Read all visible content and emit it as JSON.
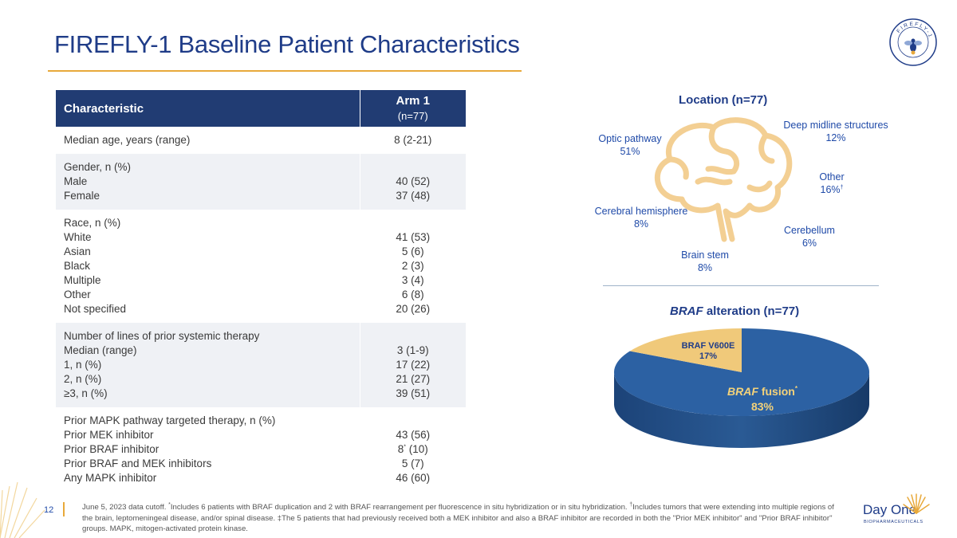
{
  "title": "FIREFLY-1 Baseline Patient Characteristics",
  "logo_text": "FIREFLY-1",
  "table": {
    "header_characteristic": "Characteristic",
    "header_arm": "Arm 1",
    "header_arm_n": "(n=77)",
    "rows": [
      {
        "labels": [
          "Median age, years (range)"
        ],
        "values": [
          "8 (2-21)"
        ]
      },
      {
        "labels": [
          "Gender, n (%)",
          "Male",
          "Female"
        ],
        "values": [
          "",
          "40 (52)",
          "37 (48)"
        ]
      },
      {
        "labels": [
          "Race, n (%)",
          "White",
          "Asian",
          "Black",
          "Multiple",
          "Other",
          "Not specified"
        ],
        "values": [
          "",
          "41 (53)",
          "5 (6)",
          "2 (3)",
          "3 (4)",
          "6 (8)",
          "20 (26)"
        ]
      },
      {
        "labels": [
          "Number of lines of prior systemic therapy",
          "Median (range)",
          "1, n (%)",
          "2, n (%)",
          "≥3, n (%)"
        ],
        "values": [
          "",
          "3 (1-9)",
          "17 (22)",
          "21 (27)",
          "39 (51)"
        ]
      },
      {
        "labels": [
          "Prior MAPK pathway targeted therapy, n (%)",
          "Prior MEK inhibitor",
          "Prior BRAF inhibitor",
          "Prior BRAF and MEK inhibitors",
          "Any MAPK inhibitor"
        ],
        "values": [
          "",
          "43 (56)",
          "8",
          "5 (7)",
          "46 (60)"
        ]
      }
    ],
    "braf_inhibitor_sup": "*",
    "braf_inhibitor_tail": " (10)",
    "braf_mek_sup": "‡"
  },
  "location": {
    "title": "Location (n=77)",
    "items": [
      {
        "name": "Optic pathway",
        "pct": "51%"
      },
      {
        "name": "Deep midline structures",
        "pct": "12%"
      },
      {
        "name": "Other",
        "pct": "16%",
        "sup": "†"
      },
      {
        "name": "Cerebral hemisphere",
        "pct": "8%"
      },
      {
        "name": "Cerebellum",
        "pct": "6%"
      },
      {
        "name": "Brain stem",
        "pct": "8%"
      }
    ]
  },
  "braf": {
    "title_italic": "BRAF",
    "title_rest": " alteration (n=77)",
    "fusion_italic": "BRAF",
    "fusion_rest": " fusion",
    "fusion_sup": "*",
    "fusion_pct": "83%",
    "v600e_label": "BRAF V600E",
    "v600e_pct": "17%"
  },
  "chart_data": [
    {
      "type": "pie",
      "title": "Location (n=77)",
      "categories": [
        "Optic pathway",
        "Deep midline structures",
        "Other",
        "Cerebral hemisphere",
        "Cerebellum",
        "Brain stem"
      ],
      "values": [
        51,
        12,
        16,
        8,
        6,
        8
      ],
      "units": "%"
    },
    {
      "type": "pie",
      "title": "BRAF alteration (n=77)",
      "categories": [
        "BRAF fusion",
        "BRAF V600E"
      ],
      "values": [
        83,
        17
      ],
      "units": "%",
      "colors": [
        "#2a5fa0",
        "#f0c97a"
      ]
    }
  ],
  "footer": {
    "page_number": "12",
    "text_1": "June 5, 2023 data cutoff. ",
    "sup_1": "*",
    "text_2": "Includes 6 patients with BRAF duplication and 2 with BRAF rearrangement per fluorescence in situ hybridization or in situ hybridization. ",
    "sup_2": "†",
    "text_3": "Includes tumors that were extending into multiple regions of the brain, leptomeningeal disease, and/or spinal disease. ‡The 5 patients that had previously received both a MEK inhibitor and also a BRAF inhibitor are recorded in both the \"Prior MEK inhibitor\" and \"Prior BRAF inhibitor\" groups. MAPK, mitogen-activated protein kinase.",
    "brand_name": "Day One",
    "brand_sub": "BIOPHARMACEUTICALS"
  }
}
